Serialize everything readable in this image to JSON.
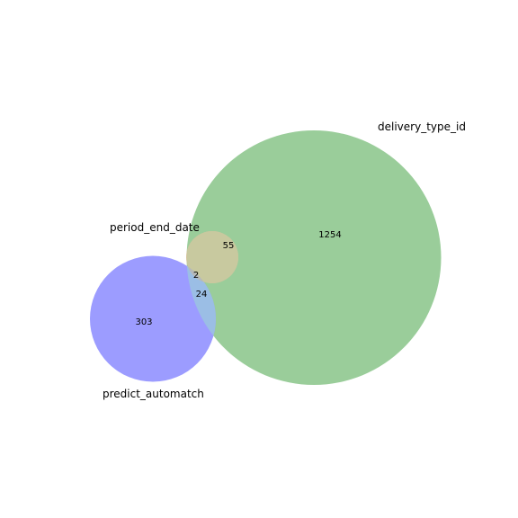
{
  "diagram": {
    "type": "venn3",
    "sets": [
      {
        "key": "delivery",
        "name": "delivery_type_id",
        "color": "#9acd9a"
      },
      {
        "key": "period",
        "name": "period_end_date",
        "color": "#e1bf9c"
      },
      {
        "key": "predict",
        "name": "predict_automatch",
        "color": "#9c9cff"
      }
    ],
    "regions": [
      {
        "key": "delivery_only",
        "sets": [
          "delivery"
        ],
        "value": "1254"
      },
      {
        "key": "period_only",
        "sets": [
          "period"
        ],
        "value": "55"
      },
      {
        "key": "predict_only",
        "sets": [
          "predict"
        ],
        "value": "303"
      },
      {
        "key": "predict_delivery",
        "sets": [
          "predict",
          "delivery"
        ],
        "value": "24"
      },
      {
        "key": "predict_delivery_period",
        "sets": [
          "predict",
          "delivery",
          "period"
        ],
        "value": "2"
      }
    ],
    "overlap_colors": {
      "period_delivery": "#c8c99f",
      "predict_delivery": "#9bbee5",
      "all_three": "#b6b9ba"
    }
  }
}
